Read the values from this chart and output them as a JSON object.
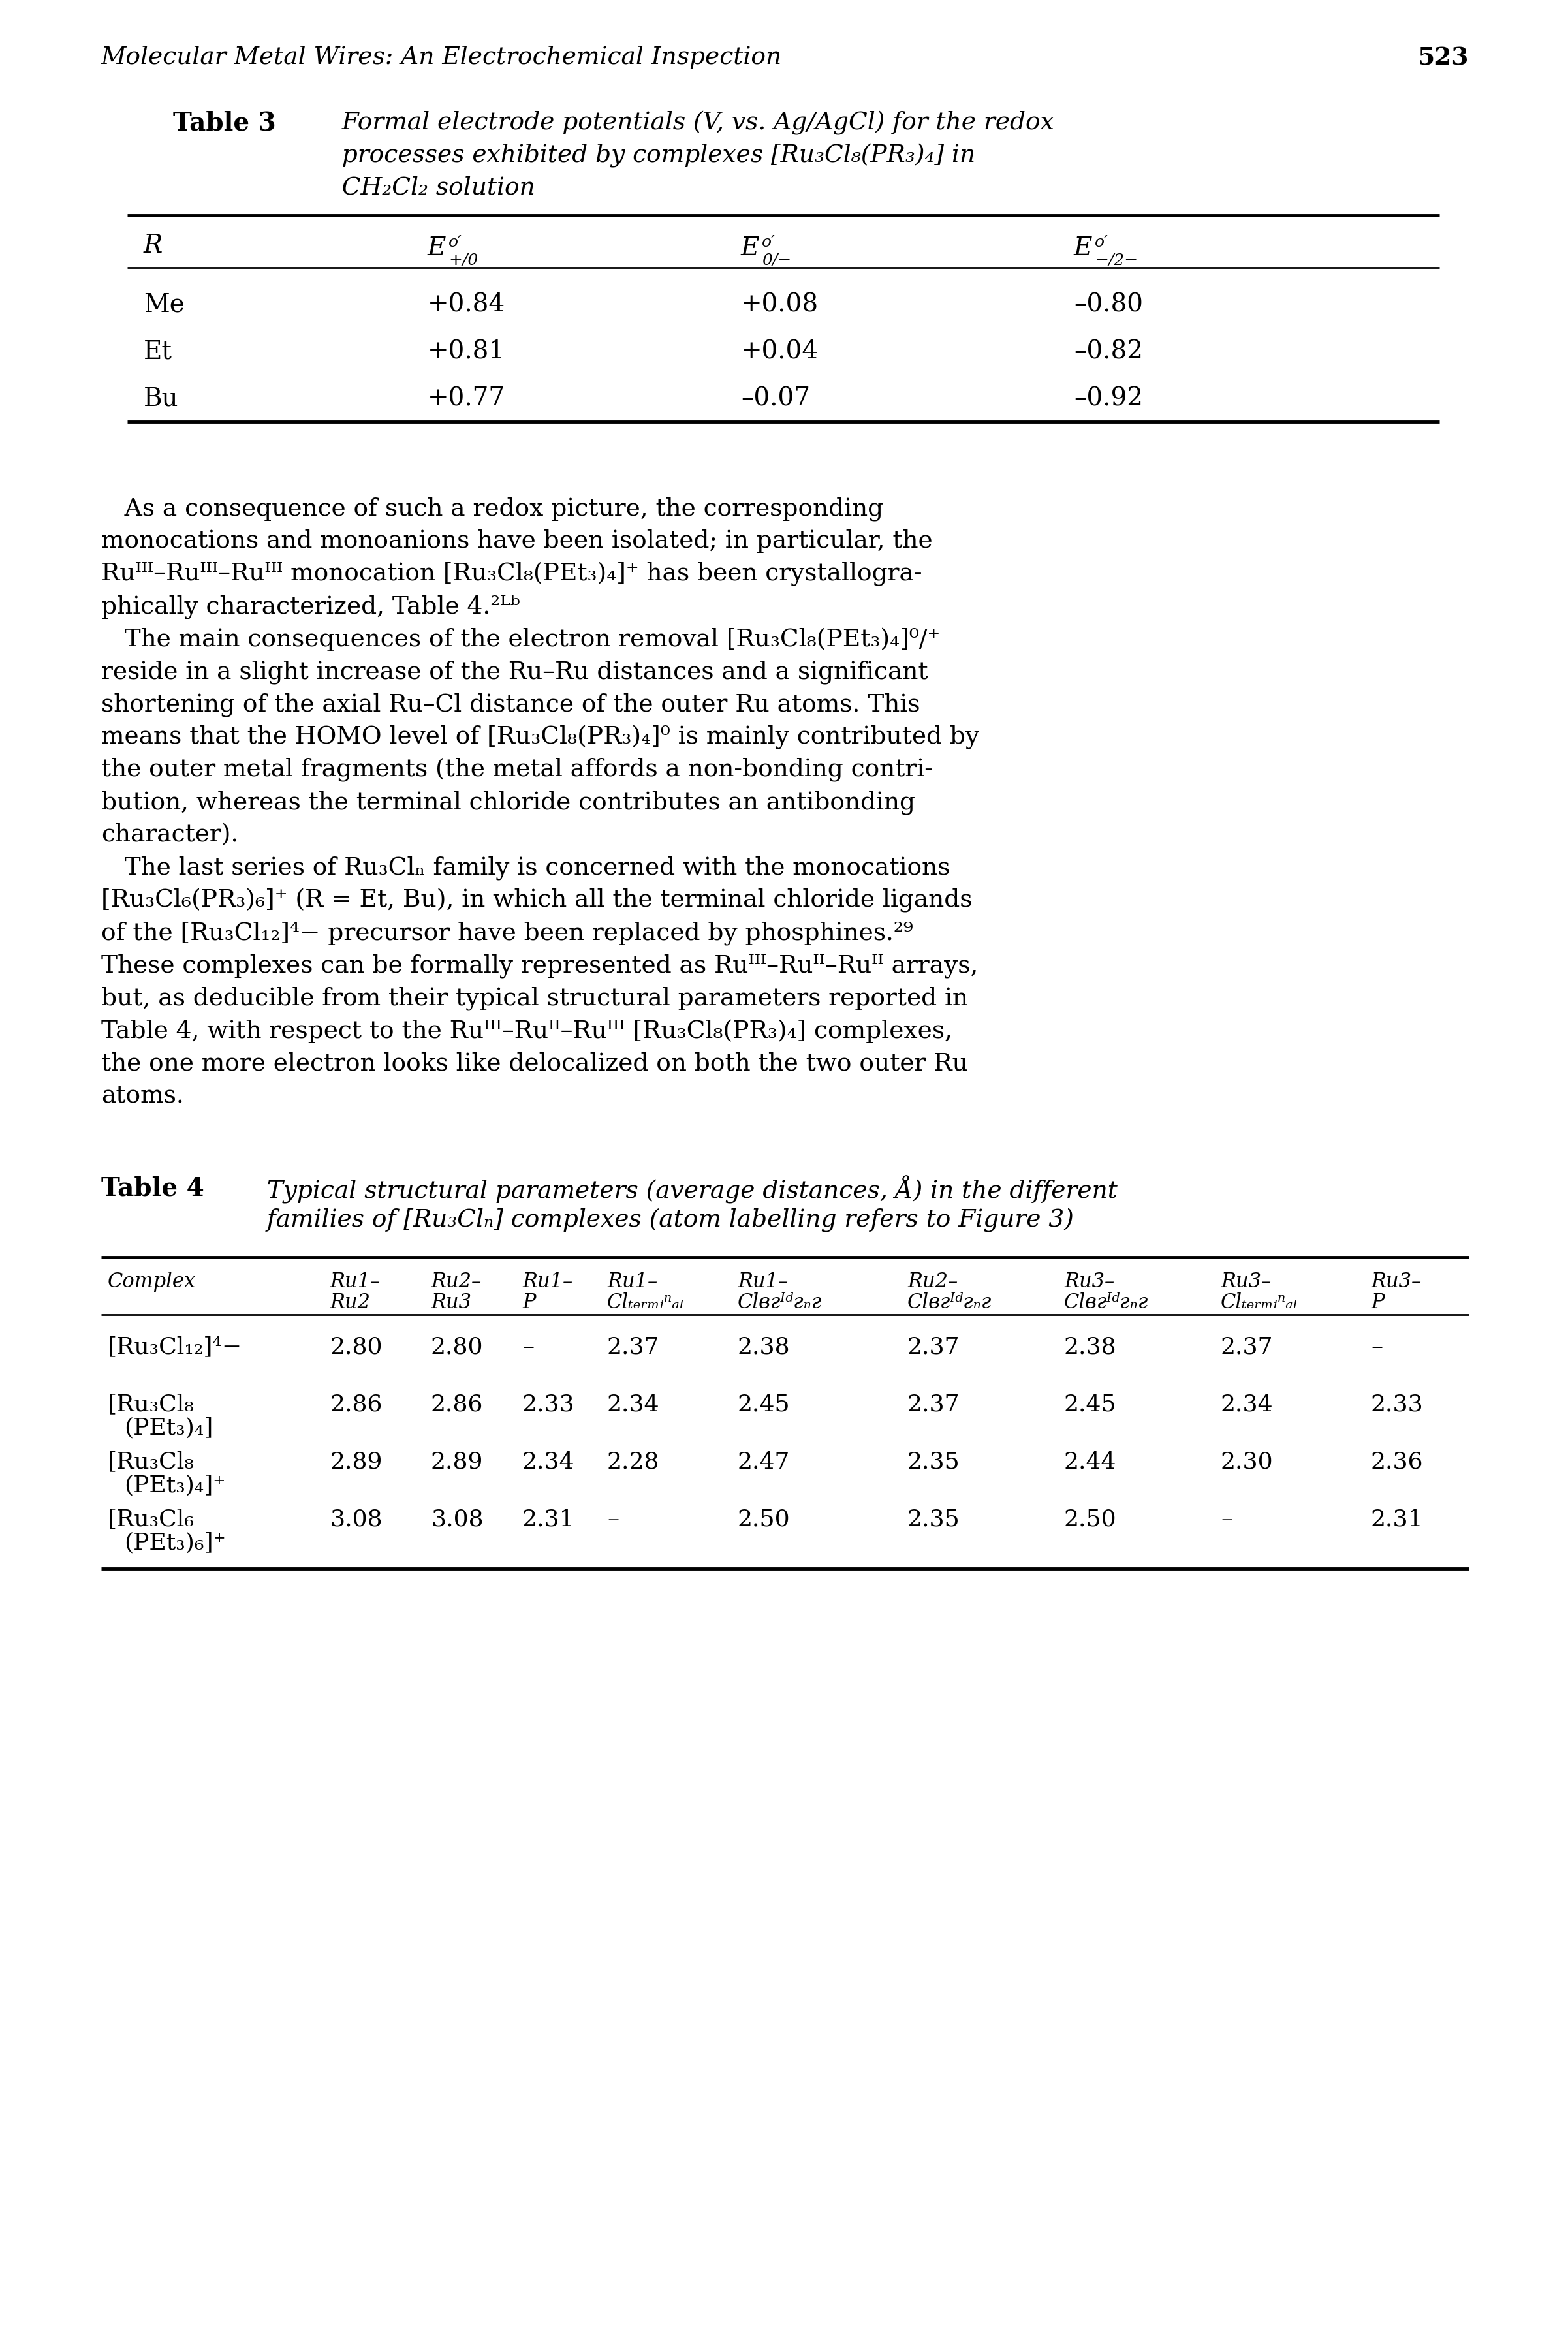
{
  "page_title_left": "Molecular Metal Wires: An Electrochemical Inspection",
  "page_number": "523",
  "table3_rows": [
    [
      "Me",
      "+0.84",
      "+0.08",
      "–0.80"
    ],
    [
      "Et",
      "+0.81",
      "+0.04",
      "–0.82"
    ],
    [
      "Bu",
      "+0.77",
      "–0.07",
      "–0.92"
    ]
  ],
  "table4_rows": [
    {
      "c1": "[Ru₃Cl₁₂]⁴−",
      "c2": null,
      "vals": [
        "2.80",
        "2.80",
        "–",
        "2.37",
        "2.38",
        "2.37",
        "2.38",
        "2.37",
        "–"
      ]
    },
    {
      "c1": "[Ru₃Cl₈",
      "c2": "(PEt₃)₄]",
      "vals": [
        "2.86",
        "2.86",
        "2.33",
        "2.34",
        "2.45",
        "2.37",
        "2.45",
        "2.34",
        "2.33"
      ]
    },
    {
      "c1": "[Ru₃Cl₈",
      "c2": "(PEt₃)₄]⁺",
      "vals": [
        "2.89",
        "2.89",
        "2.34",
        "2.28",
        "2.47",
        "2.35",
        "2.44",
        "2.30",
        "2.36"
      ]
    },
    {
      "c1": "[Ru₃Cl₆",
      "c2": "(PEt₃)₆]⁺",
      "vals": [
        "3.08",
        "3.08",
        "2.31",
        "–",
        "2.50",
        "2.35",
        "2.50",
        "–",
        "2.31"
      ]
    }
  ]
}
